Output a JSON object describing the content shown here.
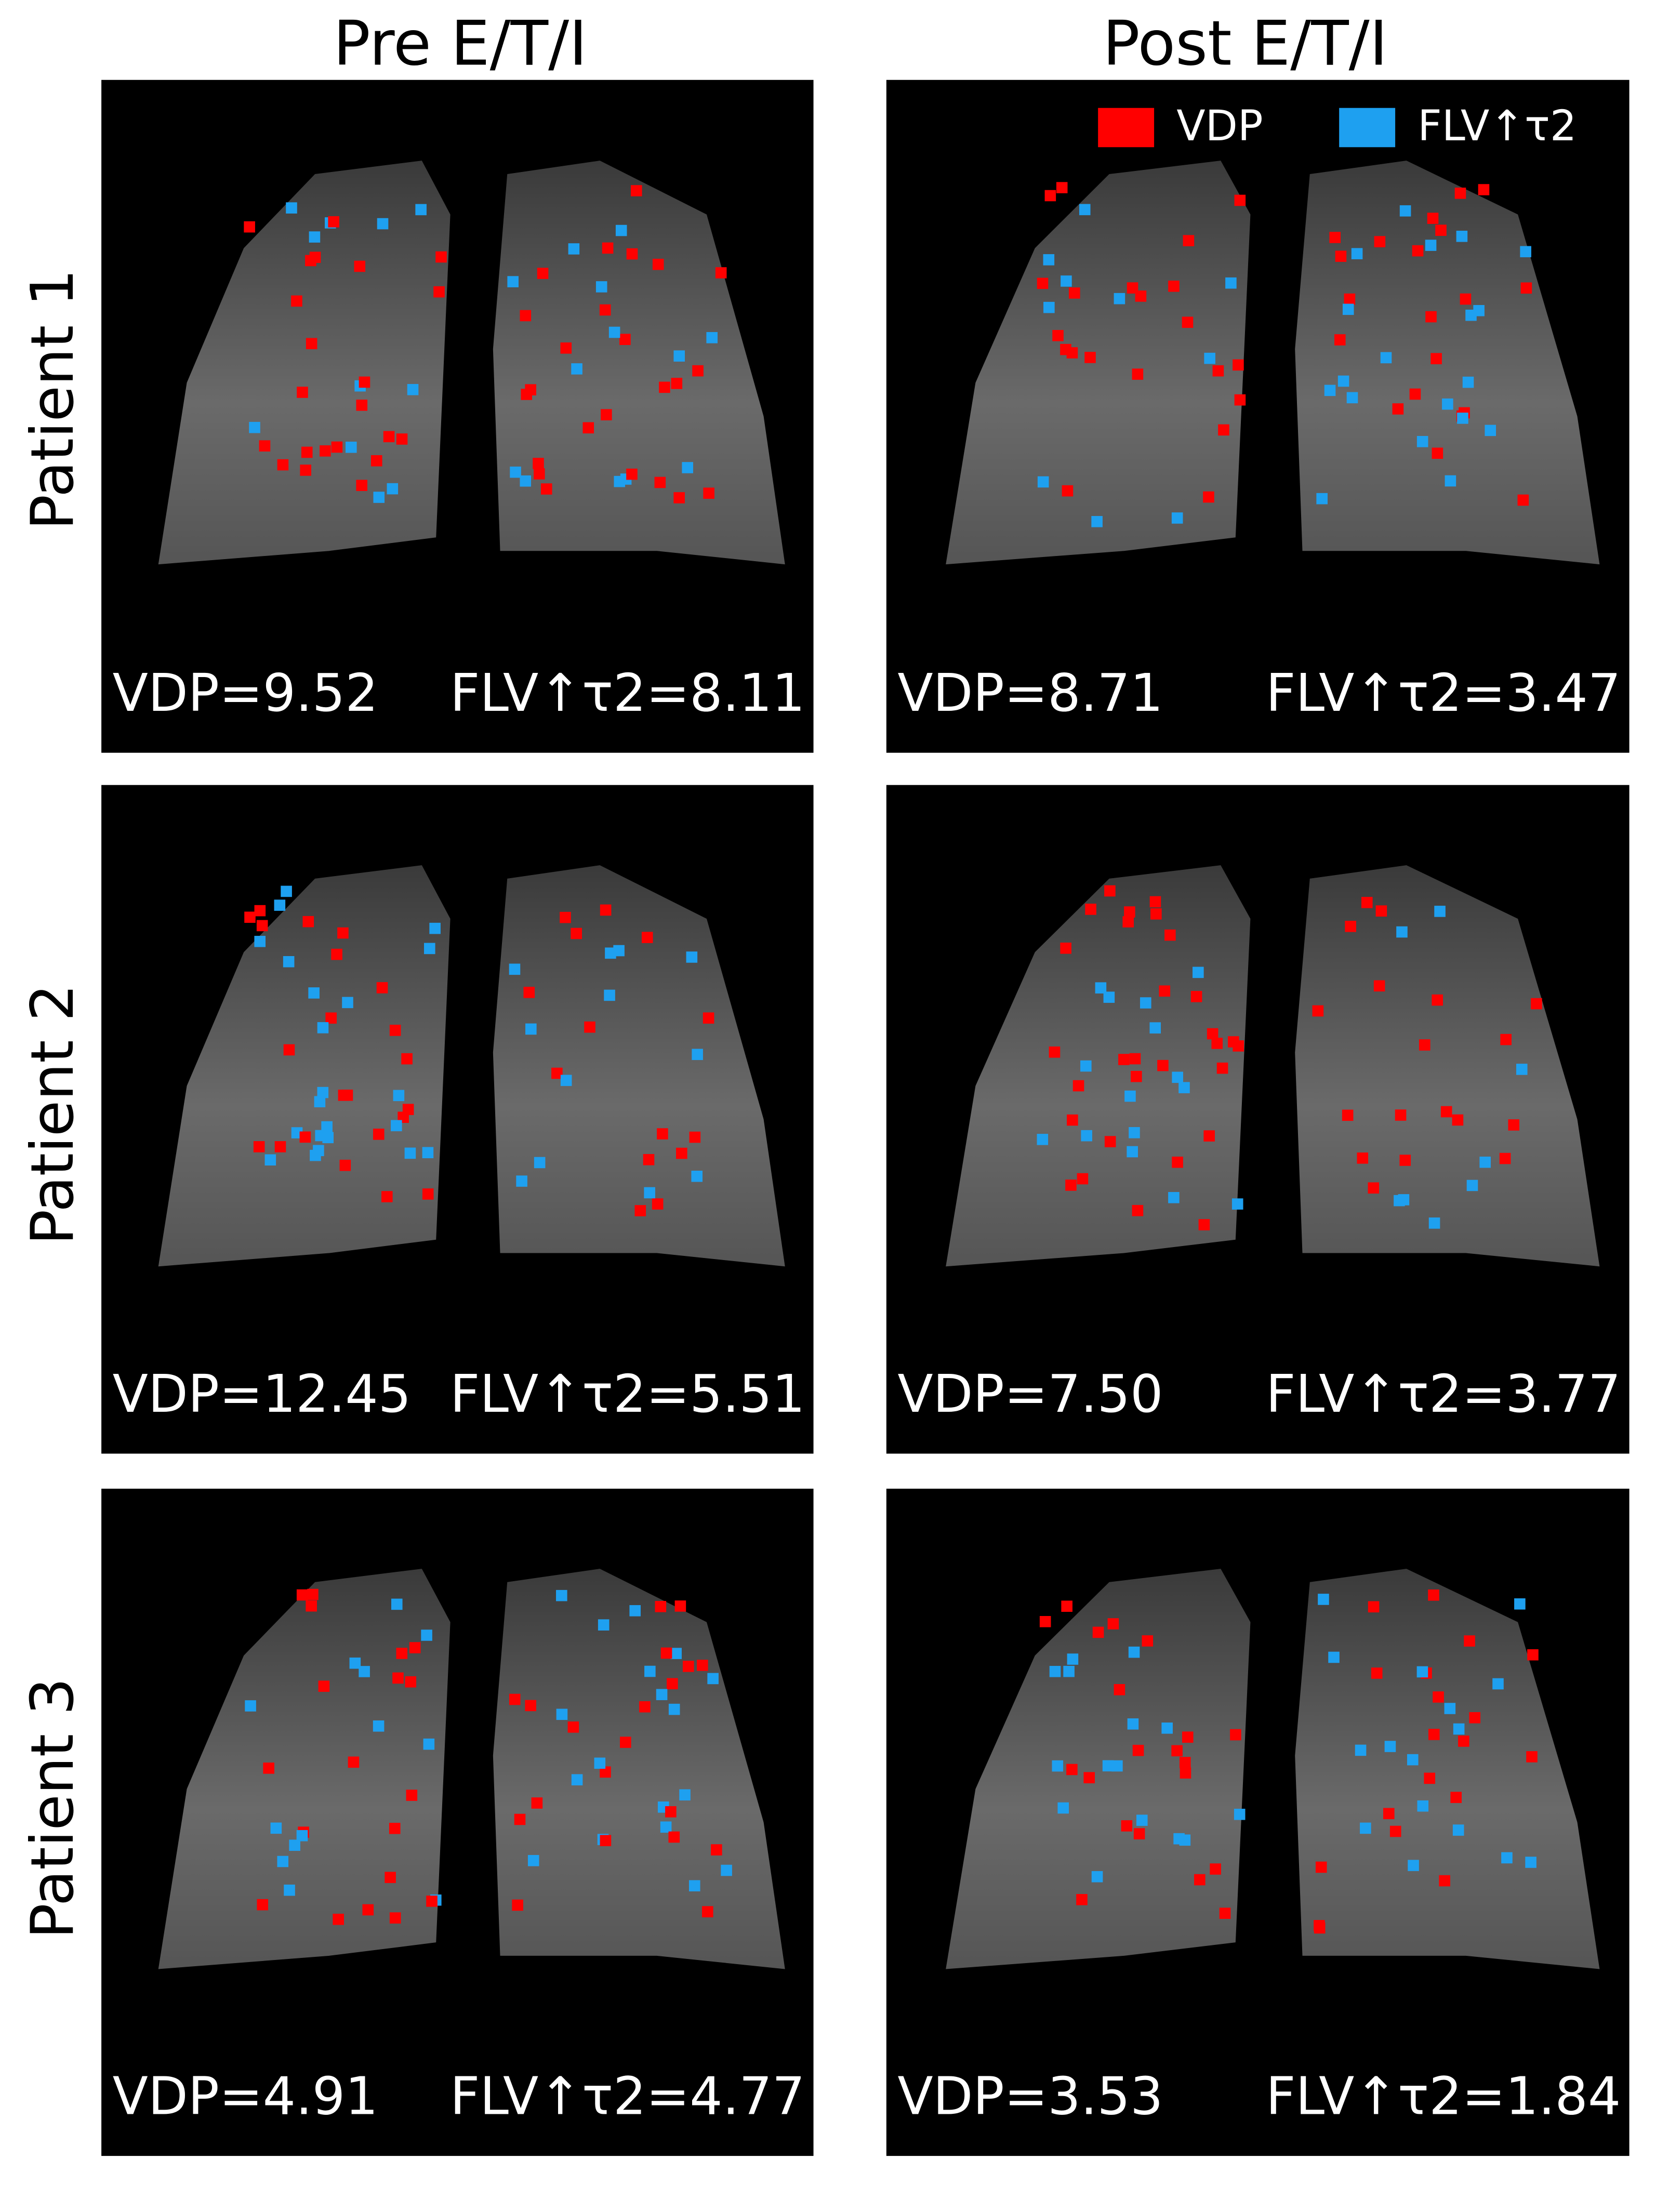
{
  "columns": [
    "Pre E/T/I",
    "Post E/T/I"
  ],
  "rows": [
    "Patient 1",
    "Patient 2",
    "Patient 3"
  ],
  "legend": [
    {
      "label": "VDP",
      "color": "#ff0000"
    },
    {
      "label": "FLV↑τ2",
      "color": "#1ea0f0"
    }
  ],
  "panels": [
    [
      {
        "vdp": "VDP=9.52",
        "flv": "FLV↑τ2=8.11"
      },
      {
        "vdp": "VDP=8.71",
        "flv": "FLV↑τ2=3.47"
      }
    ],
    [
      {
        "vdp": "VDP=12.45",
        "flv": "FLV↑τ2=5.51"
      },
      {
        "vdp": "VDP=7.50",
        "flv": "FLV↑τ2=3.77"
      }
    ],
    [
      {
        "vdp": "VDP=4.91",
        "flv": "FLV↑τ2=4.77"
      },
      {
        "vdp": "VDP=3.53",
        "flv": "FLV↑τ2=1.84"
      }
    ]
  ]
}
